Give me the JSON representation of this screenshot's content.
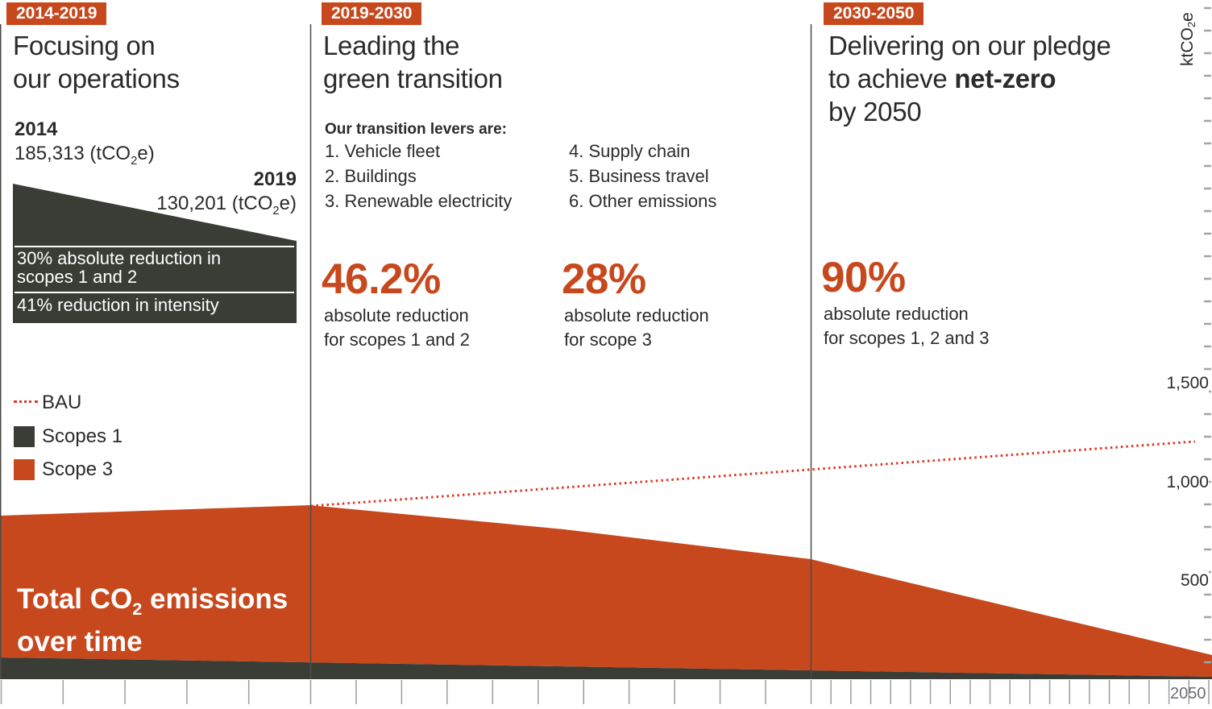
{
  "chart_data": {
    "type": "area",
    "title": "Total CO2 emissions over time",
    "x_unit": "year",
    "x_range": [
      2014,
      2050
    ],
    "section_boundaries": [
      2019,
      2030
    ],
    "y_axis": {
      "unit": "ktCO2e",
      "ticks": [
        500,
        1000,
        1500
      ],
      "ylim": [
        0,
        1700
      ]
    },
    "series": [
      {
        "name": "Total emissions (Scopes 1 + Scope 3)",
        "type": "area",
        "color": "#c8481d",
        "points": [
          {
            "year": 2014,
            "value": 825
          },
          {
            "year": 2019,
            "value": 880
          },
          {
            "year": 2030,
            "value": 605
          },
          {
            "year": 2050,
            "value": 120
          }
        ]
      },
      {
        "name": "Scopes 1",
        "type": "area",
        "color": "#3a3d36",
        "points": [
          {
            "year": 2014,
            "value": 110
          },
          {
            "year": 2030,
            "value": 55
          },
          {
            "year": 2050,
            "value": 12
          }
        ]
      },
      {
        "name": "BAU",
        "type": "line",
        "style": "dotted",
        "color": "#dc3a26",
        "points": [
          {
            "year": 2019,
            "value": 880
          },
          {
            "year": 2050,
            "value": 1200
          }
        ]
      }
    ],
    "legend_position": "left-middle",
    "grid": false
  },
  "colors": {
    "orange": "#c8481d",
    "dark": "#3a3d36",
    "bau_red": "#dc3a26",
    "tick_gray": "#9b9da0",
    "year_gray": "#6d6e71"
  },
  "sec1": {
    "badge": "2014-2019",
    "title_line1": "Focusing on",
    "title_line2": "our operations",
    "year_start": "2014",
    "value_start": {
      "pre": "185,313 (tCO",
      "sub": "2",
      "post": "e)"
    },
    "year_end": "2019",
    "value_end": {
      "pre": "130,201 (tCO",
      "sub": "2",
      "post": "e)"
    },
    "wedge_line1": "30% absolute reduction in",
    "wedge_line2": "scopes 1 and 2",
    "wedge_line3": "41% reduction in intensity",
    "legend": {
      "bau": "BAU",
      "scopes1": "Scopes 1",
      "scope3": "Scope 3"
    }
  },
  "sec2": {
    "badge": "2019-2030",
    "title_line1": "Leading the",
    "title_line2": "green transition",
    "levers_heading": "Our transition levers are:",
    "levers_col1": [
      "1. Vehicle fleet",
      "2. Buildings",
      "3. Renewable electricity"
    ],
    "levers_col2": [
      "4. Supply chain",
      "5. Business travel",
      "6. Other emissions"
    ],
    "stat1_value": "46.2%",
    "stat1_line1": "absolute reduction",
    "stat1_line2": "for scopes 1 and 2",
    "stat2_value": "28%",
    "stat2_line1": "absolute reduction",
    "stat2_line2": "for scope 3"
  },
  "sec3": {
    "badge": "2030-2050",
    "title_line1": "Delivering on our pledge",
    "title_line2_prefix": "to achieve ",
    "title_line2_bold": "net-zero",
    "title_line3": "by 2050",
    "stat_value": "90%",
    "stat_line1": "absolute reduction",
    "stat_line2": "for scopes 1, 2 and 3"
  },
  "axis": {
    "unit": {
      "pre": "ktCO",
      "sub": "2",
      "post": "e"
    },
    "y_labels": [
      "1,500",
      "1,000",
      "500"
    ],
    "x_end_label": "2050"
  },
  "area_label": {
    "pre": "Total CO",
    "sub": "2",
    "post": " emissions",
    "line2": "over time"
  }
}
